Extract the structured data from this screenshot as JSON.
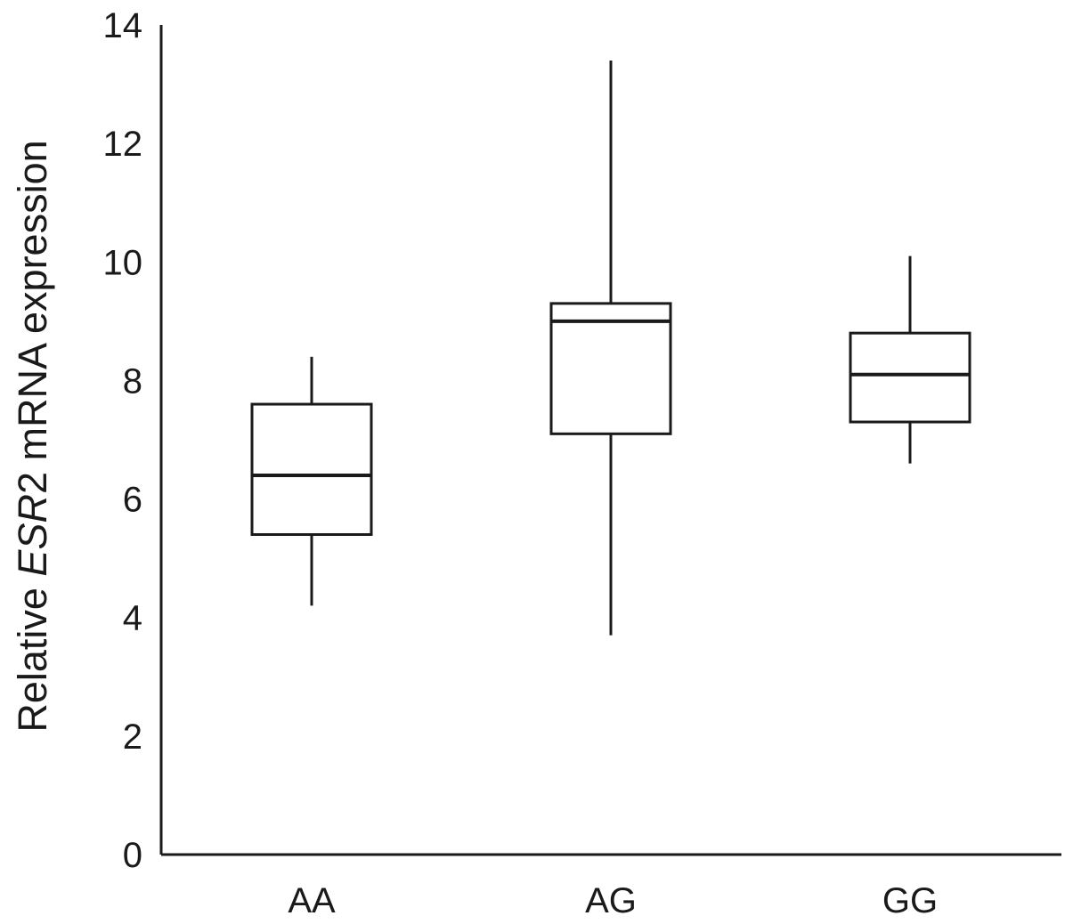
{
  "chart_data": {
    "type": "box",
    "title": "",
    "xlabel": "",
    "ylabel": {
      "prefix": "Relative ",
      "gene": "ESR",
      "gene_suffix": "2",
      "suffix": " mRNA expression"
    },
    "ylim": [
      0,
      14
    ],
    "yticks": [
      0,
      2,
      4,
      6,
      8,
      10,
      12,
      14
    ],
    "categories": [
      "AA",
      "AG",
      "GG"
    ],
    "boxes": [
      {
        "category": "AA",
        "min": 4.2,
        "q1": 5.4,
        "median": 6.4,
        "q3": 7.6,
        "max": 8.4
      },
      {
        "category": "AG",
        "min": 3.7,
        "q1": 7.1,
        "median": 9.0,
        "q3": 9.3,
        "max": 13.4
      },
      {
        "category": "GG",
        "min": 6.6,
        "q1": 7.3,
        "median": 8.1,
        "q3": 8.8,
        "max": 10.1
      }
    ],
    "grid": false,
    "legend": "none",
    "colors": {
      "stroke": "#1a1a1a",
      "fill": "#ffffff"
    }
  }
}
